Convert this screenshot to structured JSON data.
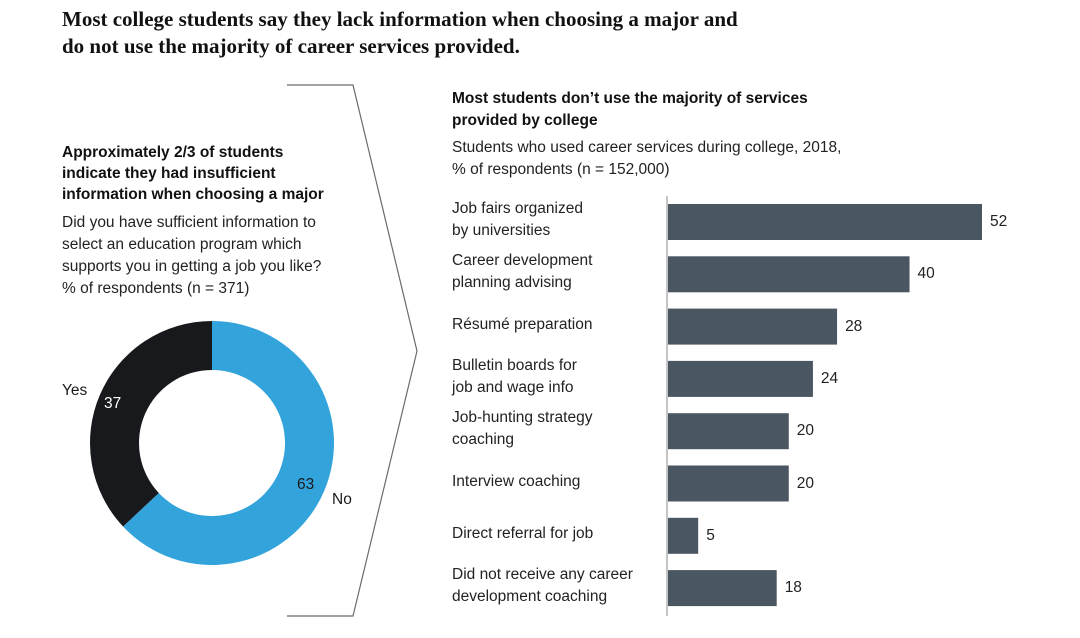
{
  "title": {
    "line1": "Most college students say they lack information when choosing a major and",
    "line2": "do not use the majority of career services provided."
  },
  "left_panel": {
    "heading": [
      "Approximately 2/3 of students",
      "indicate they had insufficient",
      "information when choosing a major"
    ],
    "subtitle": [
      "Did you have sufficient information to",
      "select an education program which",
      "supports you in getting a job you like?",
      "% of respondents (n = 371)"
    ]
  },
  "right_panel": {
    "heading": [
      "Most students don’t use the majority of services",
      "provided by college"
    ],
    "subtitle": [
      "Students who used career services during college, 2018,",
      "% of respondents (n = 152,000)"
    ]
  },
  "colors": {
    "bar": "#4a5661",
    "donut_yes": "#17191c",
    "donut_no": "#33a3dc",
    "divider": "#6b6b6b"
  },
  "chart_data": [
    {
      "type": "pie",
      "title": "Did you have sufficient information to select an education program which supports you in getting a job you like?",
      "slices": [
        {
          "label": "No",
          "value": 63
        },
        {
          "label": "Yes",
          "value": 37
        }
      ]
    },
    {
      "type": "bar",
      "orientation": "horizontal",
      "title": "Students who used career services during college, 2018, % of respondents (n = 152,000)",
      "categories": [
        [
          "Job fairs organized",
          "by universities"
        ],
        [
          "Career development",
          "planning advising"
        ],
        [
          "Résumé preparation"
        ],
        [
          "Bulletin boards for",
          "job and wage info"
        ],
        [
          "Job-hunting strategy",
          "coaching"
        ],
        [
          "Interview coaching"
        ],
        [
          "Direct referral for job"
        ],
        [
          "Did not receive any career",
          "development coaching"
        ]
      ],
      "values": [
        52,
        40,
        28,
        24,
        20,
        20,
        5,
        18
      ],
      "xlim": [
        0,
        52
      ]
    }
  ]
}
